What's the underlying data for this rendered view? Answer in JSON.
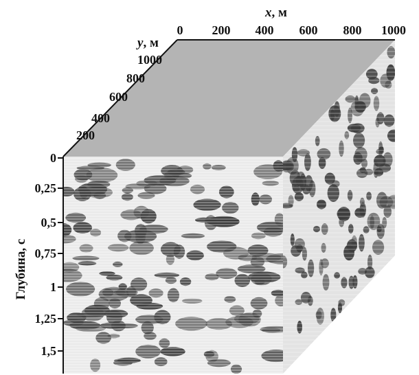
{
  "axes": {
    "x": {
      "title_var": "x",
      "title_unit": ", м",
      "ticks": [
        "0",
        "200",
        "400",
        "600",
        "800",
        "1000"
      ]
    },
    "y": {
      "title_var": "y",
      "title_unit": ", м",
      "ticks": [
        "200",
        "400",
        "600",
        "800",
        "1000"
      ]
    },
    "depth": {
      "title": "Глубина, с",
      "ticks": [
        "0",
        "0,25",
        "0,5",
        "0,75",
        "1",
        "1,25",
        "1,5"
      ]
    }
  },
  "colors": {
    "top_face": "#b4b4b4",
    "front_bg": "#eaeaea",
    "side_bg": "#e3e3e3",
    "anomaly": "#3c3c3c",
    "frame": "#111111"
  }
}
